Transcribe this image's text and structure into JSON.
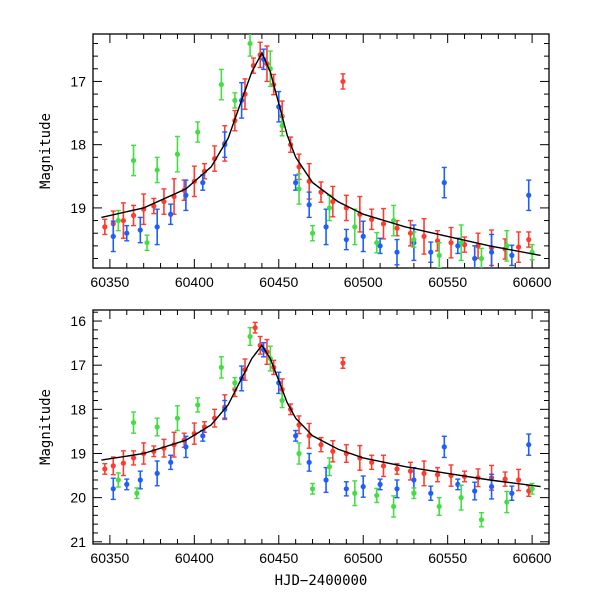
{
  "chart_data": [
    {
      "type": "scatter",
      "panel": "top",
      "xlabel": "",
      "ylabel": "Magnitude",
      "xlim": [
        60340,
        60610
      ],
      "ylim": [
        19.95,
        16.25
      ],
      "y_inverted": true,
      "xticks": [
        60350,
        60400,
        60450,
        60500,
        60550,
        60600
      ],
      "yticks": [
        17,
        18,
        19
      ],
      "grid": false,
      "series": [
        {
          "color": "#ff3b30",
          "error_bars": true,
          "points": [
            [
              60347,
              19.3
            ],
            [
              60352,
              19.25
            ],
            [
              60358,
              19.2
            ],
            [
              60364,
              19.12
            ],
            [
              60370,
              19.02
            ],
            [
              60376,
              18.97
            ],
            [
              60382,
              18.9
            ],
            [
              60388,
              18.82
            ],
            [
              60394,
              18.72
            ],
            [
              60400,
              18.58
            ],
            [
              60406,
              18.42
            ],
            [
              60412,
              18.22
            ],
            [
              60418,
              17.98
            ],
            [
              60424,
              17.62
            ],
            [
              60430,
              17.2
            ],
            [
              60435,
              16.75
            ],
            [
              60439,
              16.58
            ],
            [
              60443,
              16.72
            ],
            [
              60447,
              17.05
            ],
            [
              60452,
              17.55
            ],
            [
              60457,
              18.0
            ],
            [
              60462,
              18.35
            ],
            [
              60468,
              18.58
            ],
            [
              60475,
              18.75
            ],
            [
              60482,
              18.9
            ],
            [
              60488,
              17.0
            ],
            [
              60490,
              19.0
            ],
            [
              60498,
              19.1
            ],
            [
              60505,
              19.18
            ],
            [
              60512,
              19.25
            ],
            [
              60520,
              19.32
            ],
            [
              60528,
              19.4
            ],
            [
              60536,
              19.45
            ],
            [
              60544,
              19.52
            ],
            [
              60552,
              19.55
            ],
            [
              60560,
              19.58
            ],
            [
              60568,
              19.6
            ],
            [
              60576,
              19.63
            ],
            [
              60584,
              19.65
            ],
            [
              60592,
              19.62
            ],
            [
              60598,
              19.5
            ]
          ]
        },
        {
          "color": "#1e5eff",
          "error_bars": true,
          "points": [
            [
              60352,
              19.45
            ],
            [
              60360,
              19.4
            ],
            [
              60368,
              19.35
            ],
            [
              60378,
              19.3
            ],
            [
              60386,
              19.1
            ],
            [
              60395,
              18.8
            ],
            [
              60405,
              18.6
            ],
            [
              60418,
              18.0
            ],
            [
              60428,
              17.3
            ],
            [
              60441,
              16.65
            ],
            [
              60450,
              17.4
            ],
            [
              60460,
              18.6
            ],
            [
              60468,
              18.95
            ],
            [
              60478,
              19.3
            ],
            [
              60490,
              19.5
            ],
            [
              60500,
              19.45
            ],
            [
              60510,
              19.6
            ],
            [
              60520,
              19.7
            ],
            [
              60530,
              19.55
            ],
            [
              60540,
              19.7
            ],
            [
              60548,
              18.6
            ],
            [
              60556,
              19.6
            ],
            [
              60566,
              19.8
            ],
            [
              60576,
              19.7
            ],
            [
              60588,
              19.75
            ],
            [
              60598,
              18.8
            ]
          ]
        },
        {
          "color": "#44dd44",
          "error_bars": true,
          "points": [
            [
              60355,
              19.2
            ],
            [
              60364,
              18.25
            ],
            [
              60372,
              19.55
            ],
            [
              60378,
              18.4
            ],
            [
              60390,
              18.15
            ],
            [
              60402,
              17.8
            ],
            [
              60416,
              17.05
            ],
            [
              60424,
              17.3
            ],
            [
              60433,
              16.4
            ],
            [
              60445,
              16.8
            ],
            [
              60452,
              17.7
            ],
            [
              60462,
              18.7
            ],
            [
              60470,
              19.4
            ],
            [
              60480,
              19.0
            ],
            [
              60495,
              19.3
            ],
            [
              60508,
              19.55
            ],
            [
              60518,
              19.2
            ],
            [
              60530,
              19.5
            ],
            [
              60545,
              19.75
            ],
            [
              60558,
              19.55
            ],
            [
              60570,
              19.8
            ],
            [
              60585,
              19.6
            ],
            [
              60600,
              19.7
            ]
          ]
        }
      ],
      "fit_line": {
        "color": "#000000",
        "points": [
          [
            60345,
            19.15
          ],
          [
            60370,
            19.0
          ],
          [
            60395,
            18.7
          ],
          [
            60410,
            18.35
          ],
          [
            60420,
            17.9
          ],
          [
            60428,
            17.3
          ],
          [
            60434,
            16.85
          ],
          [
            60440,
            16.55
          ],
          [
            60445,
            16.85
          ],
          [
            60450,
            17.35
          ],
          [
            60455,
            17.85
          ],
          [
            60460,
            18.2
          ],
          [
            60470,
            18.6
          ],
          [
            60485,
            18.9
          ],
          [
            60500,
            19.1
          ],
          [
            60525,
            19.3
          ],
          [
            60550,
            19.45
          ],
          [
            60575,
            19.6
          ],
          [
            60605,
            19.75
          ]
        ]
      }
    },
    {
      "type": "scatter",
      "panel": "bottom",
      "xlabel": "HJD−2400000",
      "ylabel": "Magnitude",
      "xlim": [
        60340,
        60610
      ],
      "ylim": [
        21.05,
        15.75
      ],
      "y_inverted": true,
      "xticks": [
        60350,
        60400,
        60450,
        60500,
        60550,
        60600
      ],
      "yticks": [
        16,
        17,
        18,
        19,
        20,
        21
      ],
      "grid": false,
      "series": [
        {
          "color": "#ff3b30",
          "error_bars": true,
          "points": [
            [
              60347,
              19.35
            ],
            [
              60352,
              19.28
            ],
            [
              60358,
              19.22
            ],
            [
              60364,
              19.1
            ],
            [
              60370,
              19.0
            ],
            [
              60376,
              18.95
            ],
            [
              60382,
              18.88
            ],
            [
              60388,
              18.8
            ],
            [
              60394,
              18.7
            ],
            [
              60400,
              18.55
            ],
            [
              60406,
              18.4
            ],
            [
              60412,
              18.2
            ],
            [
              60418,
              17.95
            ],
            [
              60424,
              17.55
            ],
            [
              60430,
              17.1
            ],
            [
              60436,
              16.15
            ],
            [
              60439,
              16.55
            ],
            [
              60443,
              16.7
            ],
            [
              60447,
              17.05
            ],
            [
              60452,
              17.55
            ],
            [
              60457,
              18.0
            ],
            [
              60462,
              18.35
            ],
            [
              60468,
              18.6
            ],
            [
              60475,
              18.8
            ],
            [
              60482,
              18.95
            ],
            [
              60488,
              16.95
            ],
            [
              60490,
              19.0
            ],
            [
              60498,
              19.1
            ],
            [
              60505,
              19.2
            ],
            [
              60512,
              19.28
            ],
            [
              60520,
              19.35
            ],
            [
              60528,
              19.4
            ],
            [
              60536,
              19.45
            ],
            [
              60544,
              19.48
            ],
            [
              60552,
              19.5
            ],
            [
              60560,
              19.52
            ],
            [
              60568,
              19.55
            ],
            [
              60576,
              19.55
            ],
            [
              60584,
              19.58
            ],
            [
              60592,
              19.6
            ],
            [
              60598,
              19.85
            ]
          ]
        },
        {
          "color": "#1e5eff",
          "error_bars": true,
          "points": [
            [
              60352,
              19.8
            ],
            [
              60360,
              19.7
            ],
            [
              60368,
              19.6
            ],
            [
              60378,
              19.45
            ],
            [
              60386,
              19.2
            ],
            [
              60395,
              18.85
            ],
            [
              60405,
              18.6
            ],
            [
              60418,
              18.0
            ],
            [
              60428,
              17.3
            ],
            [
              60441,
              16.65
            ],
            [
              60450,
              17.4
            ],
            [
              60460,
              18.6
            ],
            [
              60468,
              19.2
            ],
            [
              60478,
              19.6
            ],
            [
              60490,
              19.8
            ],
            [
              60500,
              19.75
            ],
            [
              60510,
              19.7
            ],
            [
              60520,
              19.8
            ],
            [
              60530,
              19.6
            ],
            [
              60540,
              19.9
            ],
            [
              60548,
              18.85
            ],
            [
              60556,
              19.7
            ],
            [
              60566,
              19.85
            ],
            [
              60576,
              19.75
            ],
            [
              60588,
              19.9
            ],
            [
              60598,
              18.8
            ]
          ]
        },
        {
          "color": "#44dd44",
          "error_bars": true,
          "points": [
            [
              60355,
              19.6
            ],
            [
              60364,
              18.3
            ],
            [
              60366,
              19.9
            ],
            [
              60378,
              18.4
            ],
            [
              60390,
              18.2
            ],
            [
              60402,
              17.9
            ],
            [
              60416,
              17.05
            ],
            [
              60424,
              17.4
            ],
            [
              60433,
              16.35
            ],
            [
              60445,
              16.85
            ],
            [
              60452,
              17.8
            ],
            [
              60462,
              19.0
            ],
            [
              60470,
              19.8
            ],
            [
              60480,
              19.3
            ],
            [
              60495,
              19.9
            ],
            [
              60508,
              19.95
            ],
            [
              60518,
              20.2
            ],
            [
              60530,
              19.9
            ],
            [
              60545,
              20.2
            ],
            [
              60558,
              20.0
            ],
            [
              60570,
              20.5
            ],
            [
              60585,
              20.1
            ],
            [
              60600,
              19.8
            ]
          ]
        }
      ],
      "fit_line": {
        "color": "#000000",
        "points": [
          [
            60345,
            19.15
          ],
          [
            60370,
            19.0
          ],
          [
            60395,
            18.7
          ],
          [
            60410,
            18.35
          ],
          [
            60420,
            17.9
          ],
          [
            60428,
            17.3
          ],
          [
            60434,
            16.85
          ],
          [
            60440,
            16.55
          ],
          [
            60445,
            16.85
          ],
          [
            60450,
            17.35
          ],
          [
            60455,
            17.85
          ],
          [
            60460,
            18.2
          ],
          [
            60470,
            18.6
          ],
          [
            60485,
            18.9
          ],
          [
            60500,
            19.1
          ],
          [
            60525,
            19.3
          ],
          [
            60550,
            19.45
          ],
          [
            60575,
            19.6
          ],
          [
            60605,
            19.75
          ]
        ]
      }
    }
  ]
}
